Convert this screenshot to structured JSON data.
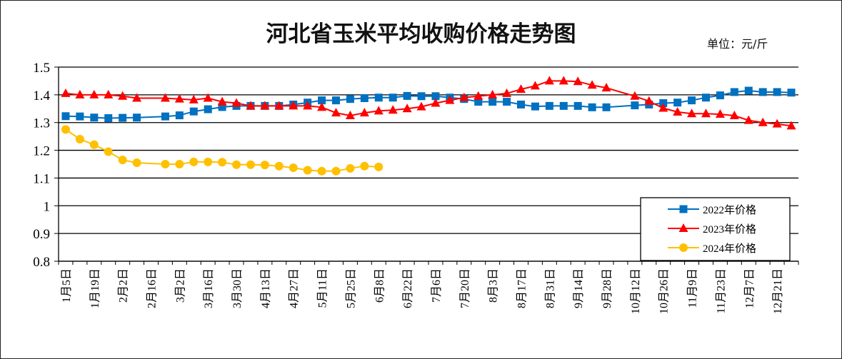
{
  "chart_data": {
    "type": "line",
    "title": "河北省玉米平均收购价格走势图",
    "unit_label": "单位：元/斤",
    "ylim": [
      0.8,
      1.5
    ],
    "yticks": [
      "1.5",
      "1.4",
      "1.3",
      "1.2",
      "1.1",
      "1",
      "0.9",
      "0.8"
    ],
    "x_labels": [
      "1月5日",
      "1月19日",
      "2月2日",
      "2月16日",
      "3月2日",
      "3月16日",
      "3月30日",
      "4月13日",
      "4月27日",
      "5月11日",
      "5月25日",
      "6月8日",
      "6月22日",
      "7月6日",
      "7月20日",
      "8月3日",
      "8月17日",
      "8月31日",
      "9月14日",
      "9月28日",
      "10月12日",
      "10月26日",
      "11月9日",
      "11月23日",
      "12月7日",
      "12月21日"
    ],
    "grid": "horizontal",
    "legend_position": "bottom-right",
    "series": [
      {
        "name": "2022年价格",
        "color": "#0070C0",
        "marker": "square",
        "x": [
          0,
          1,
          2,
          3,
          4,
          5,
          7,
          8,
          9,
          10,
          11,
          12,
          13,
          14,
          15,
          16,
          17,
          18,
          19,
          20,
          21,
          22,
          23,
          24,
          25,
          26,
          27,
          28,
          29,
          30,
          31,
          32,
          33,
          34,
          35,
          36,
          37,
          38,
          40,
          41,
          42,
          43,
          44,
          45,
          46,
          47,
          48,
          49,
          50,
          51
        ],
        "values": [
          1.323,
          1.322,
          1.318,
          1.316,
          1.317,
          1.318,
          1.322,
          1.326,
          1.34,
          1.348,
          1.356,
          1.36,
          1.36,
          1.36,
          1.36,
          1.365,
          1.372,
          1.38,
          1.38,
          1.385,
          1.388,
          1.39,
          1.39,
          1.396,
          1.395,
          1.395,
          1.39,
          1.385,
          1.375,
          1.375,
          1.375,
          1.365,
          1.358,
          1.36,
          1.36,
          1.36,
          1.355,
          1.355,
          1.362,
          1.365,
          1.37,
          1.372,
          1.38,
          1.39,
          1.398,
          1.41,
          1.415,
          1.41,
          1.41,
          1.408
        ]
      },
      {
        "name": "2023年价格",
        "color": "#FF0000",
        "marker": "triangle",
        "x": [
          0,
          1,
          2,
          3,
          4,
          5,
          7,
          8,
          9,
          10,
          11,
          12,
          13,
          14,
          15,
          16,
          17,
          18,
          19,
          20,
          21,
          22,
          23,
          24,
          25,
          26,
          27,
          28,
          29,
          30,
          31,
          32,
          33,
          34,
          35,
          36,
          37,
          38,
          40,
          41,
          42,
          43,
          44,
          45,
          46,
          47,
          48,
          49,
          50,
          51
        ],
        "values": [
          1.405,
          1.4,
          1.4,
          1.4,
          1.395,
          1.388,
          1.388,
          1.385,
          1.382,
          1.388,
          1.375,
          1.37,
          1.36,
          1.36,
          1.36,
          1.36,
          1.36,
          1.355,
          1.335,
          1.325,
          1.335,
          1.342,
          1.345,
          1.35,
          1.357,
          1.37,
          1.38,
          1.39,
          1.395,
          1.4,
          1.405,
          1.42,
          1.432,
          1.45,
          1.45,
          1.448,
          1.435,
          1.425,
          1.395,
          1.377,
          1.352,
          1.338,
          1.332,
          1.332,
          1.33,
          1.325,
          1.308,
          1.3,
          1.295,
          1.288
        ]
      },
      {
        "name": "2024年价格",
        "color": "#FFC000",
        "marker": "circle",
        "x": [
          0,
          1,
          2,
          3,
          4,
          5,
          7,
          8,
          9,
          10,
          11,
          12,
          13,
          14,
          15,
          16,
          17,
          18,
          19,
          20,
          21,
          22
        ],
        "values": [
          1.275,
          1.24,
          1.22,
          1.195,
          1.165,
          1.155,
          1.15,
          1.15,
          1.158,
          1.158,
          1.157,
          1.148,
          1.148,
          1.147,
          1.143,
          1.137,
          1.128,
          1.125,
          1.125,
          1.135,
          1.143,
          1.14
        ]
      }
    ]
  }
}
